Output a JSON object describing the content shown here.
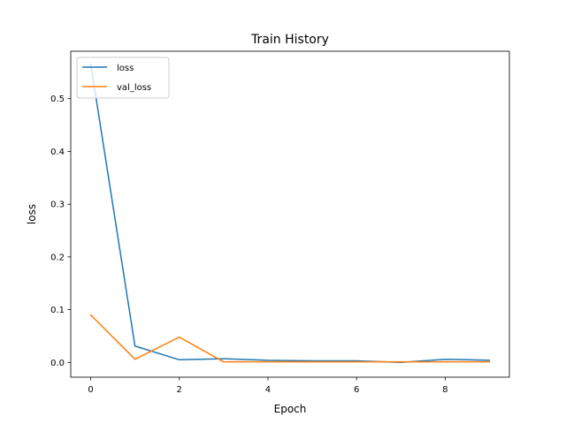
{
  "chart_data": {
    "type": "line",
    "title": "Train History",
    "xlabel": "Epoch",
    "ylabel": "loss",
    "x": [
      0,
      1,
      2,
      3,
      4,
      5,
      6,
      7,
      8,
      9
    ],
    "xlim": [
      -0.45,
      9.45
    ],
    "ylim": [
      -0.028,
      0.59
    ],
    "xticks": [
      0,
      2,
      4,
      6,
      8
    ],
    "xtick_labels": [
      "0",
      "2",
      "4",
      "6",
      "8"
    ],
    "yticks": [
      0.0,
      0.1,
      0.2,
      0.3,
      0.4,
      0.5
    ],
    "ytick_labels": [
      "0.0",
      "0.1",
      "0.2",
      "0.3",
      "0.4",
      "0.5"
    ],
    "grid": false,
    "legend_position": "upper-left",
    "series": [
      {
        "name": "loss",
        "color": "#1f77b4",
        "values": [
          0.566,
          0.031,
          0.005,
          0.007,
          0.004,
          0.003,
          0.003,
          0.0,
          0.006,
          0.004
        ]
      },
      {
        "name": "val_loss",
        "color": "#ff7f0e",
        "values": [
          0.09,
          0.006,
          0.048,
          0.001,
          0.001,
          0.001,
          0.001,
          0.001,
          0.001,
          0.001
        ]
      }
    ]
  }
}
